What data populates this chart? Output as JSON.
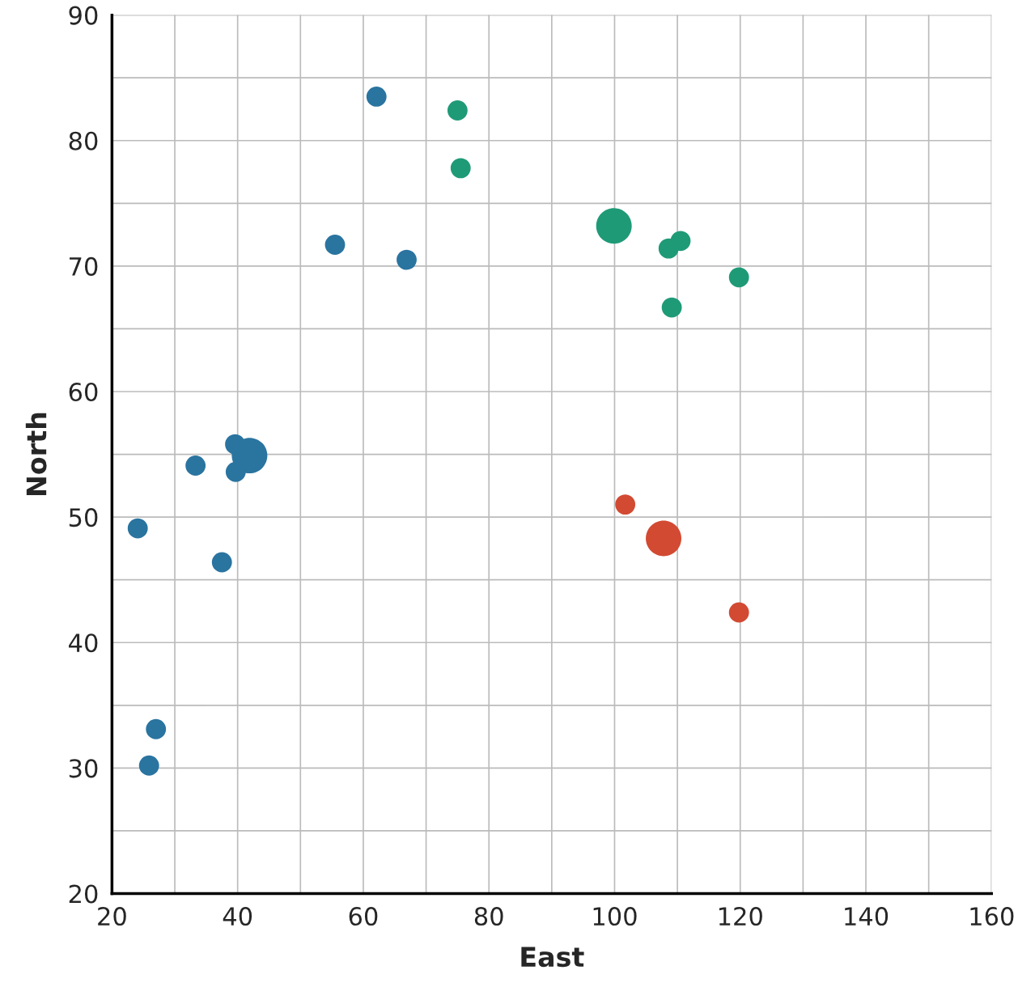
{
  "chart_data": {
    "type": "bubble",
    "xlabel": "East",
    "ylabel": "North",
    "xlim": [
      20,
      160
    ],
    "ylim": [
      20,
      90
    ],
    "xticks": [
      20,
      {
        "value": 30,
        "label": null
      },
      40,
      {
        "value": 50,
        "label": null
      },
      60,
      {
        "value": 70,
        "label": null
      },
      80,
      {
        "value": 90,
        "label": null
      },
      100,
      {
        "value": 110,
        "label": null
      },
      120,
      {
        "value": 130,
        "label": null
      },
      140,
      {
        "value": 150,
        "label": null
      },
      160
    ],
    "yticks": [
      20,
      {
        "value": 25,
        "label": null
      },
      30,
      {
        "value": 35,
        "label": null
      },
      40,
      {
        "value": 45,
        "label": null
      },
      50,
      {
        "value": 55,
        "label": null
      },
      60,
      {
        "value": 65,
        "label": null
      },
      70,
      {
        "value": 75,
        "label": null
      },
      80,
      {
        "value": 85,
        "label": null
      },
      90
    ],
    "grid": true,
    "marker": "circle",
    "series": [
      {
        "color": "#2a74a0",
        "x": [
          62.1,
          55.5,
          66.9,
          39.6,
          41.9,
          33.3,
          39.7,
          24.1,
          37.5,
          27.0,
          25.9
        ],
        "values": [
          83.5,
          71.7,
          70.5,
          55.8,
          54.9,
          54.1,
          53.6,
          49.1,
          46.4,
          33.1,
          30.2
        ],
        "sizes": [
          0.32,
          0.32,
          0.32,
          0.32,
          1,
          0.32,
          0.32,
          0.32,
          0.32,
          0.32,
          0.32
        ]
      },
      {
        "color": "#1f9a77",
        "x": [
          75.0,
          75.5,
          99.9,
          108.6,
          110.5,
          119.8,
          109.1
        ],
        "values": [
          82.4,
          77.8,
          73.2,
          71.4,
          72.0,
          69.1,
          66.7
        ],
        "sizes": [
          0.32,
          0.32,
          1,
          0.32,
          0.32,
          0.32,
          0.32
        ]
      },
      {
        "color": "#d24a32",
        "x": [
          101.7,
          107.8,
          119.8
        ],
        "values": [
          51.0,
          48.3,
          42.4
        ],
        "sizes": [
          0.32,
          1,
          0.32
        ]
      }
    ]
  }
}
